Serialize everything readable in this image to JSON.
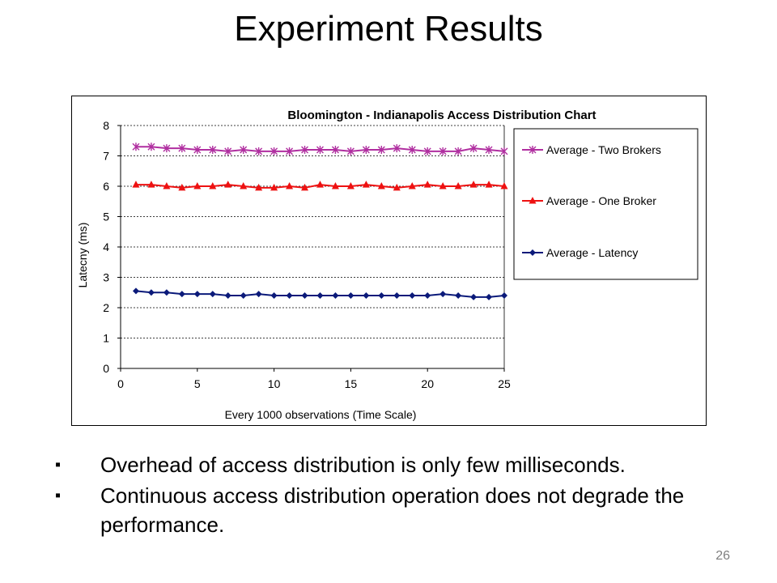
{
  "slide": {
    "title": "Experiment Results",
    "number": "26"
  },
  "bullets": [
    {
      "mark": "▪",
      "text": "Overhead of access distribution is only few milliseconds."
    },
    {
      "mark": "▪",
      "text": "Continuous access distribution operation does not degrade the performance."
    }
  ],
  "chart_data": {
    "type": "line",
    "title": "Bloomington - Indianapolis Access Distribution Chart",
    "xlabel": "Every 1000 observations (Time Scale)",
    "ylabel": "Latecny (ms)",
    "xlim": [
      0,
      25
    ],
    "ylim": [
      0,
      8
    ],
    "x_ticks": [
      0,
      5,
      10,
      15,
      20,
      25
    ],
    "y_ticks": [
      0,
      1,
      2,
      3,
      4,
      5,
      6,
      7,
      8
    ],
    "grid": "horizontal dashed",
    "legend_position": "right",
    "x": [
      1,
      2,
      3,
      4,
      5,
      6,
      7,
      8,
      9,
      10,
      11,
      12,
      13,
      14,
      15,
      16,
      17,
      18,
      19,
      20,
      21,
      22,
      23,
      24,
      25
    ],
    "series": [
      {
        "name": "Average - Two Brokers",
        "color": "#b02fa0",
        "marker": "star",
        "values": [
          7.3,
          7.3,
          7.25,
          7.25,
          7.2,
          7.2,
          7.15,
          7.2,
          7.15,
          7.15,
          7.15,
          7.2,
          7.2,
          7.2,
          7.15,
          7.2,
          7.2,
          7.25,
          7.2,
          7.15,
          7.15,
          7.15,
          7.25,
          7.2,
          7.15
        ]
      },
      {
        "name": "Average - One Broker",
        "color": "#ee1111",
        "marker": "triangle",
        "values": [
          6.05,
          6.05,
          6.0,
          5.95,
          6.0,
          6.0,
          6.05,
          6.0,
          5.95,
          5.95,
          6.0,
          5.95,
          6.05,
          6.0,
          6.0,
          6.05,
          6.0,
          5.95,
          6.0,
          6.05,
          6.0,
          6.0,
          6.05,
          6.05,
          6.0
        ]
      },
      {
        "name": "Average - Latency",
        "color": "#0b1a7a",
        "marker": "diamond",
        "values": [
          2.55,
          2.5,
          2.5,
          2.45,
          2.45,
          2.45,
          2.4,
          2.4,
          2.45,
          2.4,
          2.4,
          2.4,
          2.4,
          2.4,
          2.4,
          2.4,
          2.4,
          2.4,
          2.4,
          2.4,
          2.45,
          2.4,
          2.35,
          2.35,
          2.4
        ]
      }
    ]
  }
}
